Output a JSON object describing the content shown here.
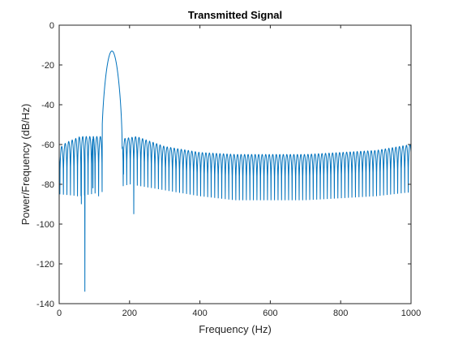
{
  "chart_data": {
    "type": "line",
    "title": "Transmitted Signal",
    "xlabel": "Frequency (Hz)",
    "ylabel": "Power/Frequency (dB/Hz)",
    "xlim": [
      0,
      1000
    ],
    "ylim": [
      -140,
      0
    ],
    "xticks": [
      0,
      200,
      400,
      600,
      800,
      1000
    ],
    "yticks": [
      0,
      -20,
      -40,
      -60,
      -80,
      -100,
      -120,
      -140
    ],
    "grid": false,
    "legend": "none",
    "series": [
      {
        "color": "#0072BD",
        "main_lobe": {
          "center": 150,
          "peak": -13,
          "null_left": 122,
          "null_right": 180,
          "edge_level": -62
        },
        "sidelobes": {
          "spacing": 10,
          "peak_envelope": [
            [
              0,
              -62
            ],
            [
              20,
              -59
            ],
            [
              60,
              -56
            ],
            [
              118,
              -56
            ],
            [
              185,
              -57
            ],
            [
              220,
              -56
            ],
            [
              300,
              -61
            ],
            [
              400,
              -64
            ],
            [
              500,
              -65
            ],
            [
              600,
              -65
            ],
            [
              700,
              -65
            ],
            [
              800,
              -64
            ],
            [
              900,
              -63
            ],
            [
              1000,
              -60
            ]
          ],
          "null_envelope": [
            [
              0,
              -85
            ],
            [
              60,
              -86
            ],
            [
              120,
              -84
            ],
            [
              200,
              -80
            ],
            [
              300,
              -83
            ],
            [
              400,
              -86
            ],
            [
              500,
              -88
            ],
            [
              600,
              -88
            ],
            [
              700,
              -88
            ],
            [
              800,
              -87
            ],
            [
              900,
              -86
            ],
            [
              1000,
              -84
            ]
          ]
        },
        "deep_nulls": [
          [
            52,
            -86
          ],
          [
            63,
            -90
          ],
          [
            73,
            -134
          ],
          [
            96,
            -82
          ],
          [
            112,
            -86
          ],
          [
            183,
            -75
          ],
          [
            212,
            -95
          ]
        ]
      }
    ]
  }
}
